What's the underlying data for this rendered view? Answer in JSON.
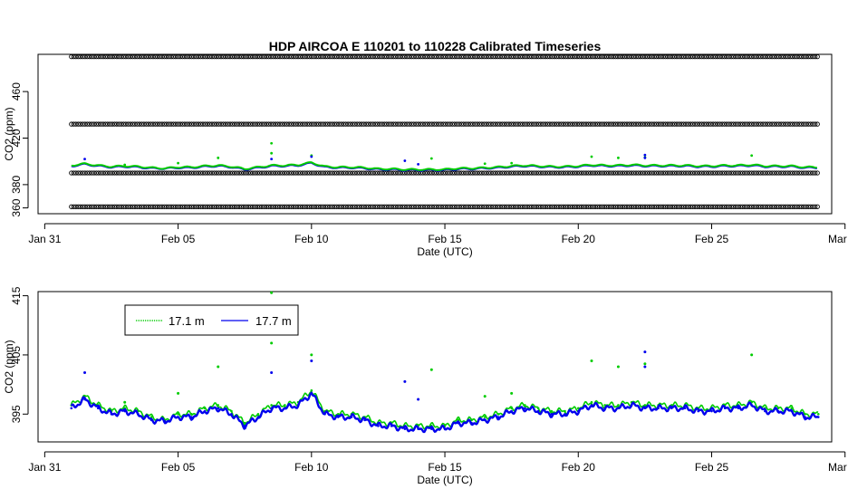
{
  "chart_data": [
    {
      "type": "scatter",
      "title": "HDP   AIRCOA  E    110201  to  110228   Calibrated Timeseries",
      "xlabel": "Date (UTC)",
      "ylabel": "CO2 (ppm)",
      "x_range_days": [
        -0.25,
        29.5
      ],
      "ylim": [
        355,
        492
      ],
      "x_ticks": [
        {
          "label": "Jan 31",
          "day": 0
        },
        {
          "label": "Feb 05",
          "day": 5
        },
        {
          "label": "Feb 10",
          "day": 10
        },
        {
          "label": "Feb 15",
          "day": 15
        },
        {
          "label": "Feb 20",
          "day": 20
        },
        {
          "label": "Feb 25",
          "day": 25
        },
        {
          "label": "Mar 02",
          "day": 30
        }
      ],
      "y_ticks": [
        360,
        380,
        420,
        460
      ],
      "calibration_levels_ppm": [
        361,
        390,
        432,
        490
      ],
      "calibration_x_range_days": [
        1.0,
        29.0
      ],
      "series": [
        {
          "name": "17.1 m",
          "color": "#00cc00"
        },
        {
          "name": "17.7 m",
          "color": "#0000ee"
        }
      ]
    },
    {
      "type": "scatter",
      "xlabel": "Date (UTC)",
      "ylabel": "CO2 (ppm)",
      "x_range_days": [
        -0.25,
        29.5
      ],
      "ylim": [
        390.3,
        415.7
      ],
      "x_ticks": [
        {
          "label": "Jan 31",
          "day": 0
        },
        {
          "label": "Feb 05",
          "day": 5
        },
        {
          "label": "Feb 10",
          "day": 10
        },
        {
          "label": "Feb 15",
          "day": 15
        },
        {
          "label": "Feb 20",
          "day": 20
        },
        {
          "label": "Feb 25",
          "day": 25
        },
        {
          "label": "Mar 02",
          "day": 30
        }
      ],
      "y_ticks": [
        395,
        405,
        415
      ],
      "legend": "top-left",
      "series": [
        {
          "name": "17.1 m",
          "color": "#00cc00",
          "x": [
            1.0,
            1.5,
            2.0,
            2.5,
            3.0,
            3.5,
            4.0,
            4.5,
            5.0,
            5.5,
            6.0,
            6.5,
            7.0,
            7.5,
            8.0,
            8.5,
            9.0,
            9.5,
            10.0,
            10.5,
            11.0,
            11.5,
            12.0,
            12.5,
            13.0,
            13.5,
            14.0,
            14.5,
            15.0,
            15.5,
            16.0,
            16.5,
            17.0,
            17.5,
            18.0,
            18.5,
            19.0,
            19.5,
            20.0,
            20.5,
            21.0,
            21.5,
            22.0,
            22.5,
            23.0,
            23.5,
            24.0,
            24.5,
            25.0,
            25.5,
            26.0,
            26.5,
            27.0,
            27.5,
            28.0,
            28.5,
            29.0
          ],
          "values": [
            396.5,
            398.0,
            396.5,
            395.5,
            396.0,
            395.5,
            394.5,
            394.0,
            395.0,
            395.0,
            396.0,
            396.5,
            395.5,
            393.5,
            395.0,
            396.5,
            396.5,
            397.0,
            399.0,
            395.5,
            395.0,
            395.0,
            394.5,
            393.5,
            393.5,
            393.0,
            393.0,
            393.0,
            393.0,
            394.0,
            394.0,
            394.5,
            395.0,
            396.0,
            396.5,
            396.0,
            395.5,
            395.5,
            396.0,
            397.0,
            396.5,
            396.5,
            397.0,
            396.5,
            396.5,
            396.5,
            396.5,
            396.0,
            396.0,
            396.5,
            396.5,
            397.0,
            396.0,
            396.0,
            396.0,
            395.0,
            395.0
          ]
        },
        {
          "name": "17.7 m",
          "color": "#0000ee",
          "x": [
            1.0,
            1.5,
            2.0,
            2.5,
            3.0,
            3.5,
            4.0,
            4.5,
            5.0,
            5.5,
            6.0,
            6.5,
            7.0,
            7.5,
            8.0,
            8.5,
            9.0,
            9.5,
            10.0,
            10.5,
            11.0,
            11.5,
            12.0,
            12.5,
            13.0,
            13.5,
            14.0,
            14.5,
            15.0,
            15.5,
            16.0,
            16.5,
            17.0,
            17.5,
            18.0,
            18.5,
            19.0,
            19.5,
            20.0,
            20.5,
            21.0,
            21.5,
            22.0,
            22.5,
            23.0,
            23.5,
            24.0,
            24.5,
            25.0,
            25.5,
            26.0,
            26.5,
            27.0,
            27.5,
            28.0,
            28.5,
            29.0
          ],
          "values": [
            396.0,
            397.5,
            396.0,
            395.0,
            395.5,
            395.0,
            394.0,
            393.8,
            394.5,
            394.5,
            395.5,
            396.0,
            395.0,
            393.0,
            394.5,
            396.0,
            396.0,
            396.5,
            398.5,
            395.0,
            394.5,
            394.5,
            394.0,
            393.0,
            393.0,
            392.5,
            392.5,
            392.5,
            392.5,
            393.5,
            393.5,
            394.0,
            394.5,
            395.5,
            396.0,
            395.5,
            395.0,
            395.0,
            395.5,
            396.5,
            396.0,
            396.0,
            396.5,
            396.0,
            396.0,
            396.0,
            396.0,
            395.5,
            395.5,
            396.0,
            396.0,
            396.5,
            395.5,
            395.5,
            395.5,
            394.5,
            394.5
          ]
        }
      ],
      "outliers_17_1m": {
        "x": [
          8.5,
          8.5,
          10.0,
          6.5,
          14.5,
          20.5,
          21.5,
          22.5,
          26.5,
          5.0,
          3.0,
          16.5,
          17.5
        ],
        "values": [
          415.5,
          407.0,
          405.0,
          403.0,
          402.5,
          404.0,
          403.0,
          403.5,
          405.0,
          398.5,
          397.0,
          398.0,
          398.5
        ]
      },
      "outliers_17_7m": {
        "x": [
          1.5,
          8.5,
          13.5,
          22.5,
          22.5,
          14.0,
          10.0
        ],
        "values": [
          402.0,
          402.0,
          400.5,
          405.5,
          403.0,
          397.5,
          404.0
        ]
      }
    }
  ]
}
